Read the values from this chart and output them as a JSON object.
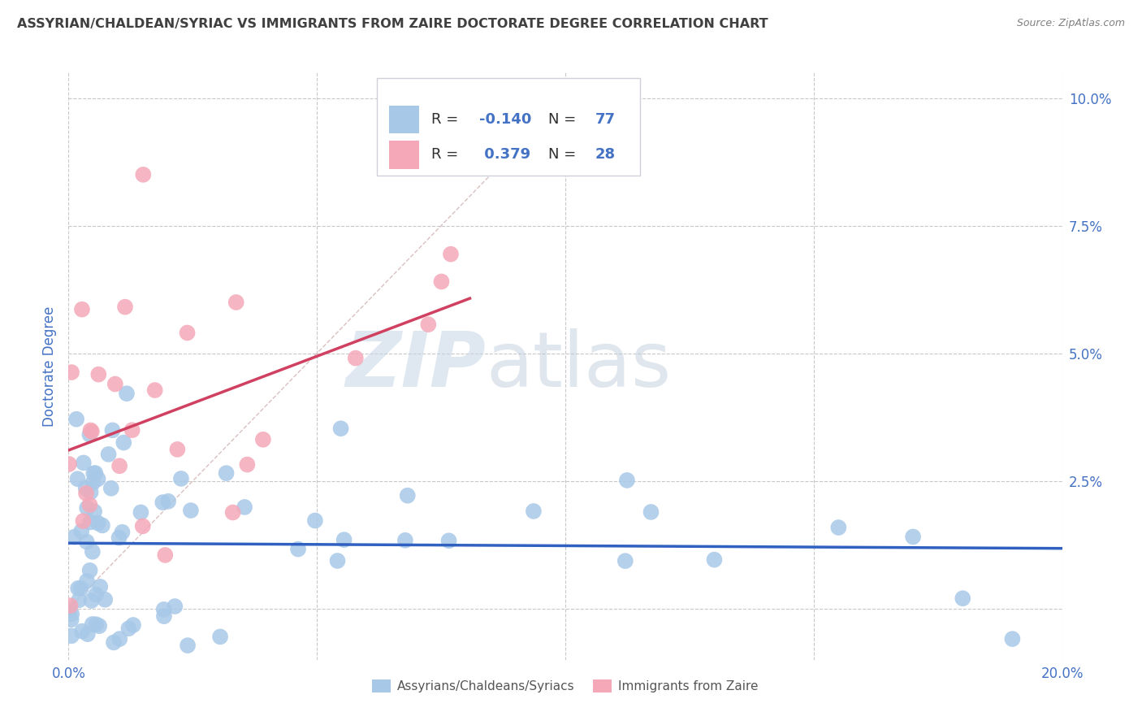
{
  "title": "ASSYRIAN/CHALDEAN/SYRIAC VS IMMIGRANTS FROM ZAIRE DOCTORATE DEGREE CORRELATION CHART",
  "source": "Source: ZipAtlas.com",
  "ylabel": "Doctorate Degree",
  "xlim": [
    0.0,
    0.2
  ],
  "ylim": [
    -0.01,
    0.105
  ],
  "xticks": [
    0.0,
    0.05,
    0.1,
    0.15,
    0.2
  ],
  "xticklabels": [
    "0.0%",
    "",
    "",
    "",
    "20.0%"
  ],
  "yticks": [
    0.0,
    0.025,
    0.05,
    0.075,
    0.1
  ],
  "yticklabels_right": [
    "",
    "2.5%",
    "5.0%",
    "7.5%",
    "10.0%"
  ],
  "legend_labels": [
    "Assyrians/Chaldeans/Syriacs",
    "Immigrants from Zaire"
  ],
  "R_blue": -0.14,
  "N_blue": 77,
  "R_pink": 0.379,
  "N_pink": 28,
  "blue_color": "#a8c8e8",
  "pink_color": "#f4a8b8",
  "blue_line_color": "#3060c0",
  "pink_line_color": "#d04060",
  "background_color": "#ffffff",
  "grid_color": "#c8c8c8",
  "title_color": "#404040",
  "label_color": "#4472c4",
  "source_color": "#808080",
  "legend_box_color": "#e8e8f0",
  "watermark_zip_color": "#c8d8e8",
  "watermark_atlas_color": "#c8c8e0"
}
